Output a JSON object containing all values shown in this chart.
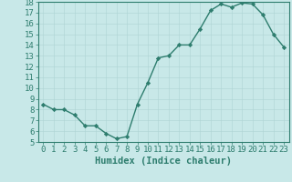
{
  "x": [
    0,
    1,
    2,
    3,
    4,
    5,
    6,
    7,
    8,
    9,
    10,
    11,
    12,
    13,
    14,
    15,
    16,
    17,
    18,
    19,
    20,
    21,
    22,
    23
  ],
  "y": [
    8.5,
    8.0,
    8.0,
    7.5,
    6.5,
    6.5,
    5.8,
    5.3,
    5.5,
    8.5,
    10.5,
    12.8,
    13.0,
    14.0,
    14.0,
    15.5,
    17.2,
    17.8,
    17.5,
    17.9,
    17.8,
    16.8,
    15.0,
    13.8
  ],
  "line_color": "#2e7d6e",
  "marker": "D",
  "marker_size": 2.2,
  "bg_color": "#c8e8e8",
  "grid_color": "#aed4d4",
  "axis_color": "#2e7d6e",
  "tick_color": "#2e7d6e",
  "xlabel": "Humidex (Indice chaleur)",
  "ylim": [
    5,
    18
  ],
  "xlim": [
    -0.5,
    23.5
  ],
  "yticks": [
    5,
    6,
    7,
    8,
    9,
    10,
    11,
    12,
    13,
    14,
    15,
    16,
    17,
    18
  ],
  "xticks": [
    0,
    1,
    2,
    3,
    4,
    5,
    6,
    7,
    8,
    9,
    10,
    11,
    12,
    13,
    14,
    15,
    16,
    17,
    18,
    19,
    20,
    21,
    22,
    23
  ],
  "font_size": 6.5,
  "label_fontsize": 7.5,
  "linewidth": 1.0
}
